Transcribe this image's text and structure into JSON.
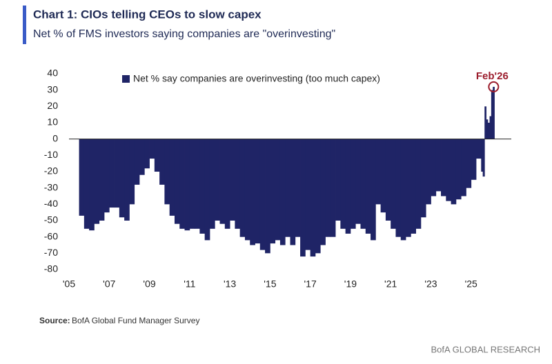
{
  "chart_data": {
    "type": "bar",
    "title": "Chart 1: CIOs telling CEOs to slow capex",
    "subtitle": "Net % of FMS investors saying companies are \"overinvesting\"",
    "source_label": "Source:",
    "source": "BofA Global Fund Manager Survey",
    "footer": "BofA GLOBAL RESEARCH",
    "annotation": "Feb'26",
    "series": [
      {
        "name": "Net % say companies are overinvesting (too much capex)",
        "color": "#1f2466",
        "x": [
          2005.5,
          2005.75,
          2006,
          2006.25,
          2006.5,
          2006.75,
          2007,
          2007.25,
          2007.5,
          2007.75,
          2008,
          2008.25,
          2008.5,
          2008.75,
          2009,
          2009.25,
          2009.5,
          2009.75,
          2010,
          2010.25,
          2010.5,
          2010.75,
          2011,
          2011.25,
          2011.5,
          2011.75,
          2012,
          2012.25,
          2012.5,
          2012.75,
          2013,
          2013.25,
          2013.5,
          2013.75,
          2014,
          2014.25,
          2014.5,
          2014.75,
          2015,
          2015.25,
          2015.5,
          2015.75,
          2016,
          2016.25,
          2016.5,
          2016.75,
          2017,
          2017.25,
          2017.5,
          2017.75,
          2018,
          2018.25,
          2018.5,
          2018.75,
          2019,
          2019.25,
          2019.5,
          2019.75,
          2020,
          2020.25,
          2020.5,
          2020.75,
          2021,
          2021.25,
          2021.5,
          2021.75,
          2022,
          2022.25,
          2022.5,
          2022.75,
          2023,
          2023.25,
          2023.5,
          2023.75,
          2024,
          2024.25,
          2024.5,
          2024.75,
          2025,
          2025.25,
          2025.5,
          2025.58,
          2025.67,
          2025.75,
          2025.83,
          2025.92,
          2026,
          2026.08
        ],
        "values": [
          -47,
          -55,
          -56,
          -52,
          -50,
          -45,
          -42,
          -42,
          -48,
          -50,
          -40,
          -28,
          -22,
          -18,
          -12,
          -20,
          -28,
          -40,
          -47,
          -52,
          -55,
          -56,
          -55,
          -55,
          -58,
          -62,
          -55,
          -50,
          -52,
          -55,
          -50,
          -55,
          -60,
          -62,
          -65,
          -64,
          -68,
          -70,
          -64,
          -62,
          -65,
          -60,
          -65,
          -60,
          -72,
          -68,
          -72,
          -70,
          -65,
          -60,
          -60,
          -50,
          -55,
          -58,
          -55,
          -52,
          -55,
          -58,
          -62,
          -40,
          -45,
          -50,
          -55,
          -60,
          -62,
          -60,
          -58,
          -55,
          -48,
          -40,
          -35,
          -32,
          -35,
          -38,
          -40,
          -37,
          -35,
          -30,
          -25,
          -12,
          -20,
          -23,
          20,
          12,
          10,
          14,
          30,
          32
        ]
      }
    ],
    "xlim": [
      2005,
      2027
    ],
    "xticks": [
      {
        "value": 2005,
        "label": "'05"
      },
      {
        "value": 2007,
        "label": "'07"
      },
      {
        "value": 2009,
        "label": "'09"
      },
      {
        "value": 2011,
        "label": "'11"
      },
      {
        "value": 2013,
        "label": "'13"
      },
      {
        "value": 2015,
        "label": "'15"
      },
      {
        "value": 2017,
        "label": "'17"
      },
      {
        "value": 2019,
        "label": "'19"
      },
      {
        "value": 2021,
        "label": "'21"
      },
      {
        "value": 2023,
        "label": "'23"
      },
      {
        "value": 2025,
        "label": "'25"
      }
    ],
    "ylim": [
      -80,
      40
    ],
    "yticks": [
      -80,
      -70,
      -60,
      -50,
      -40,
      -30,
      -20,
      -10,
      0,
      10,
      20,
      30,
      40
    ]
  }
}
